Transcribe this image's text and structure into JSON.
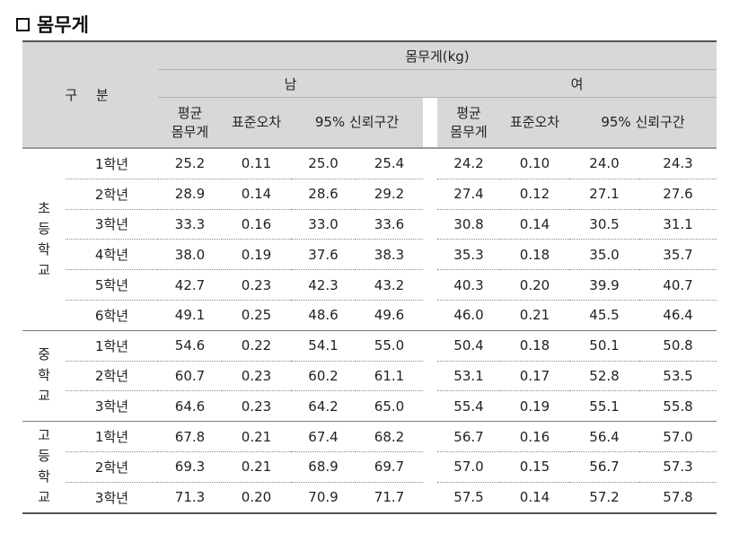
{
  "title": {
    "label": "몸무게"
  },
  "table": {
    "gubun": "구 분",
    "weight_header": "몸무게(kg)",
    "male": "남",
    "female": "여",
    "col_mean_line1": "평균",
    "col_mean_line2": "몸무게",
    "col_se": "표준오차",
    "col_ci": "95% 신뢰구간",
    "groups": [
      {
        "name_chars": [
          "초",
          "등",
          "학",
          "교"
        ],
        "rows": [
          {
            "grade": "1학년",
            "m": [
              "25.2",
              "0.11",
              "25.0",
              "25.4"
            ],
            "f": [
              "24.2",
              "0.10",
              "24.0",
              "24.3"
            ]
          },
          {
            "grade": "2학년",
            "m": [
              "28.9",
              "0.14",
              "28.6",
              "29.2"
            ],
            "f": [
              "27.4",
              "0.12",
              "27.1",
              "27.6"
            ]
          },
          {
            "grade": "3학년",
            "m": [
              "33.3",
              "0.16",
              "33.0",
              "33.6"
            ],
            "f": [
              "30.8",
              "0.14",
              "30.5",
              "31.1"
            ]
          },
          {
            "grade": "4학년",
            "m": [
              "38.0",
              "0.19",
              "37.6",
              "38.3"
            ],
            "f": [
              "35.3",
              "0.18",
              "35.0",
              "35.7"
            ]
          },
          {
            "grade": "5학년",
            "m": [
              "42.7",
              "0.23",
              "42.3",
              "43.2"
            ],
            "f": [
              "40.3",
              "0.20",
              "39.9",
              "40.7"
            ]
          },
          {
            "grade": "6학년",
            "m": [
              "49.1",
              "0.25",
              "48.6",
              "49.6"
            ],
            "f": [
              "46.0",
              "0.21",
              "45.5",
              "46.4"
            ]
          }
        ]
      },
      {
        "name_chars": [
          "중",
          "학",
          "교"
        ],
        "rows": [
          {
            "grade": "1학년",
            "m": [
              "54.6",
              "0.22",
              "54.1",
              "55.0"
            ],
            "f": [
              "50.4",
              "0.18",
              "50.1",
              "50.8"
            ]
          },
          {
            "grade": "2학년",
            "m": [
              "60.7",
              "0.23",
              "60.2",
              "61.1"
            ],
            "f": [
              "53.1",
              "0.17",
              "52.8",
              "53.5"
            ]
          },
          {
            "grade": "3학년",
            "m": [
              "64.6",
              "0.23",
              "64.2",
              "65.0"
            ],
            "f": [
              "55.4",
              "0.19",
              "55.1",
              "55.8"
            ]
          }
        ]
      },
      {
        "name_chars": [
          "고",
          "등",
          "학",
          "교"
        ],
        "rows": [
          {
            "grade": "1학년",
            "m": [
              "67.8",
              "0.21",
              "67.4",
              "68.2"
            ],
            "f": [
              "56.7",
              "0.16",
              "56.4",
              "57.0"
            ]
          },
          {
            "grade": "2학년",
            "m": [
              "69.3",
              "0.21",
              "68.9",
              "69.7"
            ],
            "f": [
              "57.0",
              "0.15",
              "56.7",
              "57.3"
            ]
          },
          {
            "grade": "3학년",
            "m": [
              "71.3",
              "0.20",
              "70.9",
              "71.7"
            ],
            "f": [
              "57.5",
              "0.14",
              "57.2",
              "57.8"
            ]
          }
        ]
      }
    ]
  }
}
